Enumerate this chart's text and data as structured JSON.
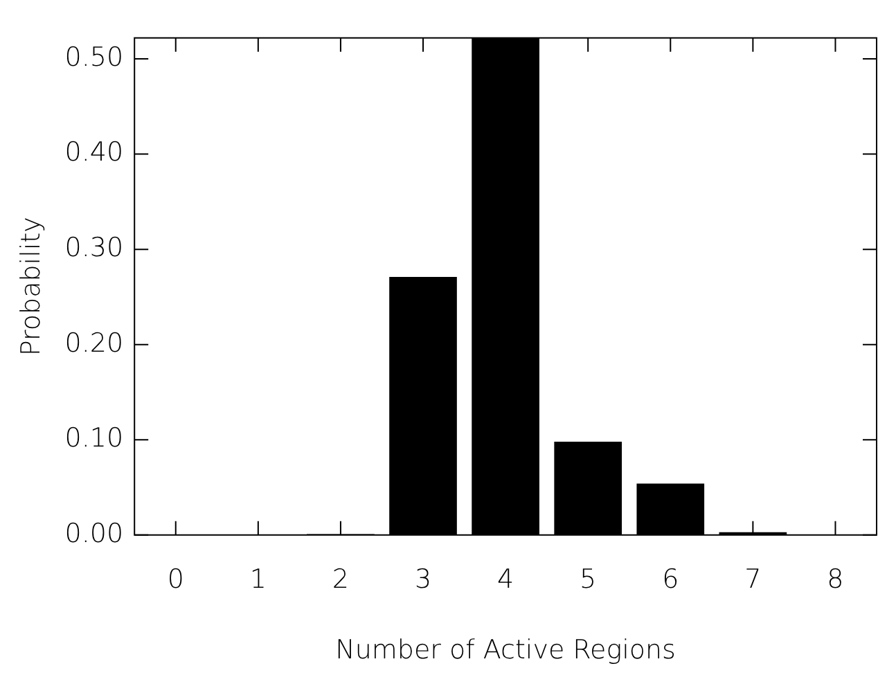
{
  "chart_data": {
    "type": "bar",
    "xlabel": "Number of Active Regions",
    "ylabel": "Probability",
    "categories": [
      "0",
      "1",
      "2",
      "3",
      "4",
      "5",
      "6",
      "7",
      "8"
    ],
    "values": [
      0,
      0,
      0.001,
      0.271,
      0.522,
      0.098,
      0.054,
      0.003,
      0
    ],
    "color": "#000000",
    "ylim": [
      0,
      0.522
    ],
    "yticks": [
      {
        "value": 0,
        "label": "0.00"
      },
      {
        "value": 0.1,
        "label": "0.10"
      },
      {
        "value": 0.2,
        "label": "0.20"
      },
      {
        "value": 0.3,
        "label": "0.30"
      },
      {
        "value": 0.4,
        "label": "0.40"
      },
      {
        "value": 0.5,
        "label": "0.50"
      }
    ],
    "grid": false,
    "legend": false
  }
}
